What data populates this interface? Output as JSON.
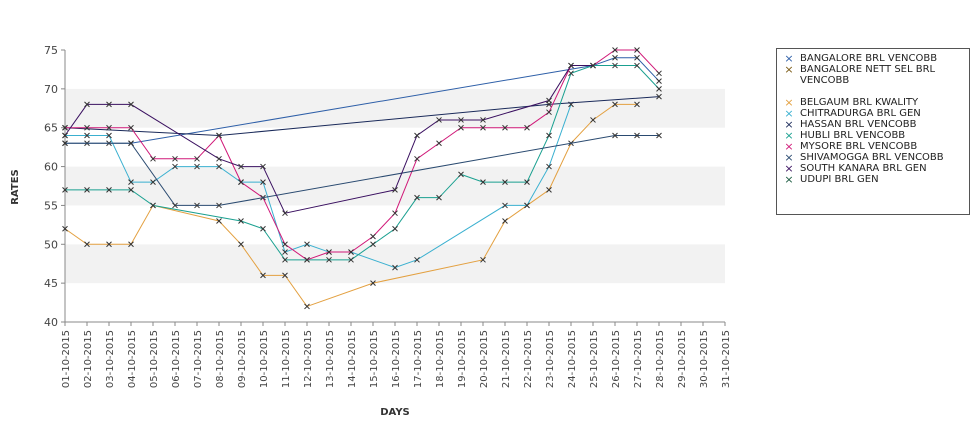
{
  "chart_data": {
    "type": "line",
    "xlabel": "DAYS",
    "ylabel": "RATES",
    "ylim": [
      40,
      75
    ],
    "yticks": [
      40,
      45,
      50,
      55,
      60,
      65,
      70,
      75
    ],
    "grid": "alternating horizontal bands",
    "legend_position": "right",
    "categories": [
      "01-10-2015",
      "02-10-2015",
      "03-10-2015",
      "04-10-2015",
      "05-10-2015",
      "06-10-2015",
      "07-10-2015",
      "08-10-2015",
      "09-10-2015",
      "10-10-2015",
      "11-10-2015",
      "12-10-2015",
      "13-10-2015",
      "14-10-2015",
      "15-10-2015",
      "16-10-2015",
      "17-10-2015",
      "18-10-2015",
      "19-10-2015",
      "20-10-2015",
      "21-10-2015",
      "22-10-2015",
      "23-10-2015",
      "24-10-2015",
      "25-10-2015",
      "26-10-2015",
      "27-10-2015",
      "28-10-2015",
      "29-10-2015",
      "30-10-2015",
      "31-10-2015"
    ],
    "series": [
      {
        "name": "BANGALORE BRL VENCOBB",
        "color": "#2e5fa8",
        "values": [
          63,
          63,
          63,
          63,
          null,
          null,
          null,
          null,
          null,
          null,
          null,
          null,
          null,
          null,
          null,
          null,
          null,
          null,
          null,
          null,
          null,
          null,
          null,
          null,
          73,
          74,
          74,
          71,
          null,
          null,
          null
        ]
      },
      {
        "name": "BANGALORE NETT SEL BRL VENCOBB",
        "color": "#7a5a14",
        "values": [
          null,
          null,
          null,
          null,
          null,
          null,
          null,
          null,
          null,
          null,
          null,
          null,
          null,
          null,
          null,
          null,
          null,
          null,
          null,
          null,
          null,
          null,
          null,
          null,
          null,
          null,
          null,
          null,
          null,
          null,
          null
        ]
      },
      {
        "name": "BELGAUM BRL KWALITY",
        "color": "#e3a040",
        "values": [
          52,
          50,
          50,
          50,
          55,
          null,
          null,
          53,
          50,
          46,
          46,
          42,
          null,
          null,
          45,
          null,
          null,
          null,
          null,
          48,
          53,
          55,
          57,
          63,
          66,
          68,
          68,
          null,
          null,
          null,
          null
        ]
      },
      {
        "name": "CHITRADURGA BRL GEN",
        "color": "#3ab0d0",
        "values": [
          64,
          64,
          64,
          58,
          58,
          60,
          60,
          60,
          58,
          58,
          49,
          50,
          49,
          49,
          null,
          47,
          48,
          null,
          null,
          null,
          55,
          55,
          60,
          68,
          null,
          null,
          null,
          null,
          null,
          null,
          null
        ]
      },
      {
        "name": "HASSAN BRL VENCOBB",
        "color": "#1a2a5a",
        "values": [
          65,
          null,
          null,
          null,
          null,
          null,
          null,
          64,
          null,
          null,
          null,
          null,
          null,
          null,
          null,
          null,
          null,
          null,
          null,
          null,
          null,
          null,
          68,
          null,
          null,
          null,
          null,
          69,
          null,
          null,
          null
        ]
      },
      {
        "name": "HUBLI BRL VENCOBB",
        "color": "#1aa090",
        "values": [
          57,
          57,
          57,
          57,
          55,
          null,
          null,
          null,
          53,
          52,
          48,
          48,
          48,
          48,
          50,
          52,
          56,
          56,
          59,
          58,
          58,
          58,
          64,
          72,
          73,
          73,
          73,
          70,
          null,
          null,
          null
        ]
      },
      {
        "name": "MYSORE BRL VENCOBB",
        "color": "#d01878",
        "values": [
          65,
          65,
          65,
          65,
          61,
          61,
          61,
          64,
          58,
          56,
          50,
          48,
          49,
          49,
          51,
          54,
          61,
          63,
          65,
          65,
          65,
          65,
          67,
          73,
          73,
          75,
          75,
          72,
          null,
          null,
          null
        ]
      },
      {
        "name": "SHIVAMOGGA BRL VENCOBB",
        "color": "#2a4a70",
        "values": [
          63,
          null,
          null,
          63,
          null,
          55,
          55,
          55,
          null,
          null,
          null,
          null,
          null,
          null,
          null,
          null,
          null,
          null,
          null,
          null,
          null,
          null,
          null,
          null,
          null,
          64,
          64,
          64,
          null,
          null,
          null
        ]
      },
      {
        "name": "SOUTH KANARA BRL GEN",
        "color": "#3a1060",
        "values": [
          64,
          68,
          68,
          68,
          null,
          null,
          null,
          61,
          60,
          60,
          54,
          null,
          null,
          null,
          null,
          57,
          64,
          66,
          66,
          66,
          null,
          null,
          68.5,
          73,
          73,
          null,
          null,
          null,
          null,
          null,
          null
        ]
      },
      {
        "name": "UDUPI BRL GEN",
        "color": "#1a5a40",
        "values": [
          null,
          null,
          null,
          null,
          null,
          null,
          null,
          null,
          null,
          null,
          null,
          null,
          null,
          null,
          null,
          null,
          null,
          null,
          null,
          null,
          null,
          null,
          null,
          null,
          null,
          null,
          null,
          null,
          null,
          null,
          null
        ]
      }
    ]
  },
  "legend": {
    "items": [
      {
        "label": "BANGALORE BRL VENCOBB",
        "color": "#2e5fa8"
      },
      {
        "label": "BANGALORE NETT SEL BRL VENCOBB",
        "color": "#7a5a14"
      },
      {
        "label": "BELGAUM BRL KWALITY",
        "color": "#e3a040"
      },
      {
        "label": "CHITRADURGA BRL GEN",
        "color": "#3ab0d0"
      },
      {
        "label": "HASSAN BRL VENCOBB",
        "color": "#1a2a5a"
      },
      {
        "label": "HUBLI BRL VENCOBB",
        "color": "#1aa090"
      },
      {
        "label": "MYSORE BRL VENCOBB",
        "color": "#d01878"
      },
      {
        "label": "SHIVAMOGGA BRL VENCOBB",
        "color": "#2a4a70"
      },
      {
        "label": "SOUTH KANARA BRL GEN",
        "color": "#3a1060"
      },
      {
        "label": "UDUPI BRL GEN",
        "color": "#1a5a40"
      }
    ],
    "marker": "×"
  }
}
